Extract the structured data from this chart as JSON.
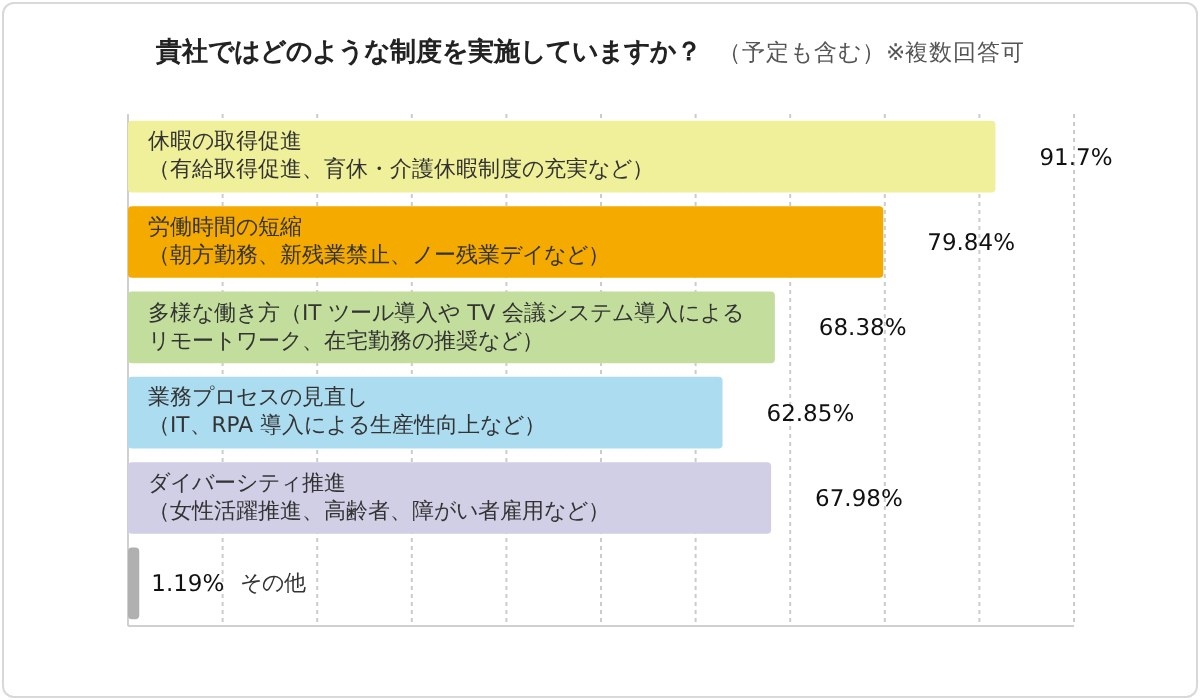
{
  "chart_data": {
    "type": "bar",
    "orientation": "horizontal",
    "title": "貴社ではどのような制度を実施していますか？",
    "subtitle": "（予定も含む）※複数回答可",
    "categories": [
      "休暇の取得促進（有給取得促進、育休・介護休暇制度の充実など）",
      "労働時間の短縮（朝方勤務、新残業禁止、ノー残業デイなど）",
      "多様な働き方（IT ツール導入や TV 会議システム導入によるリモートワーク、在宅勤務の推奨など）",
      "業務プロセスの見直し（IT、RPA 導入による生産性向上など）",
      "ダイバーシティ推進（女性活躍推進、高齢者、障がい者雇用など）",
      "その他"
    ],
    "values": [
      91.7,
      79.84,
      68.38,
      62.85,
      67.98,
      1.19
    ],
    "value_labels": [
      "91.7%",
      "79.84%",
      "68.38%",
      "62.85%",
      "67.98%",
      "1.19%"
    ],
    "colors": [
      "#f0f09b",
      "#f5aa00",
      "#c3de9c",
      "#acdcf0",
      "#d0cfe6",
      "#b0b0b0"
    ],
    "xlim": [
      0,
      100
    ],
    "xticks": [
      {
        "value": 0,
        "label": null
      },
      {
        "value": 10,
        "label": null
      },
      {
        "value": 20,
        "label": null
      },
      {
        "value": 30,
        "label": null
      },
      {
        "value": 40,
        "label": null
      },
      {
        "value": 50,
        "label": null
      },
      {
        "value": 60,
        "label": null
      },
      {
        "value": 70,
        "label": null
      },
      {
        "value": 80,
        "label": null
      },
      {
        "value": 90,
        "label": null
      },
      {
        "value": 100,
        "label": null
      }
    ],
    "grid": "x",
    "tick_labels": "y"
  }
}
